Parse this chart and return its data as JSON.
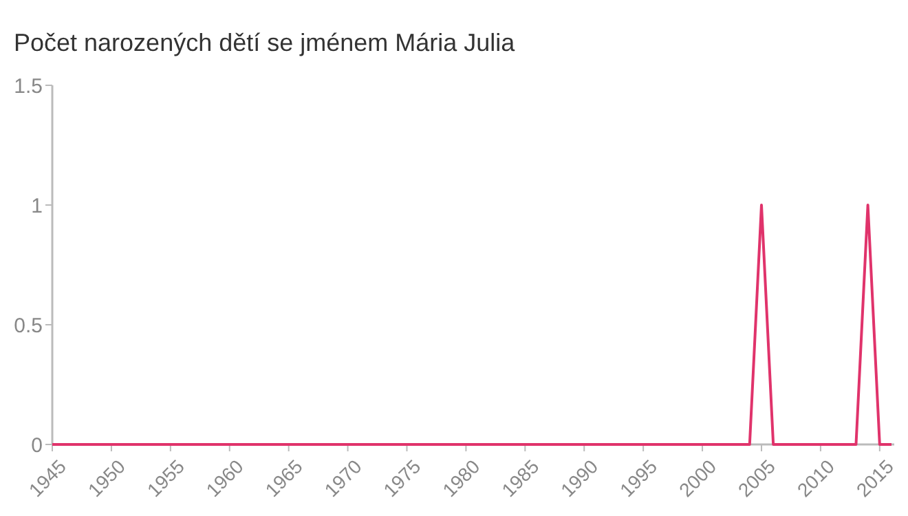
{
  "chart_data": {
    "type": "line",
    "title": "Počet narozených dětí se jménem Mária Julia",
    "x": [
      1945,
      1946,
      1947,
      1948,
      1949,
      1950,
      1951,
      1952,
      1953,
      1954,
      1955,
      1956,
      1957,
      1958,
      1959,
      1960,
      1961,
      1962,
      1963,
      1964,
      1965,
      1966,
      1967,
      1968,
      1969,
      1970,
      1971,
      1972,
      1973,
      1974,
      1975,
      1976,
      1977,
      1978,
      1979,
      1980,
      1981,
      1982,
      1983,
      1984,
      1985,
      1986,
      1987,
      1988,
      1989,
      1990,
      1991,
      1992,
      1993,
      1994,
      1995,
      1996,
      1997,
      1998,
      1999,
      2000,
      2001,
      2002,
      2003,
      2004,
      2005,
      2006,
      2007,
      2008,
      2009,
      2010,
      2011,
      2012,
      2013,
      2014,
      2015,
      2016
    ],
    "series": [
      {
        "color": "#e0336b",
        "values": [
          0,
          0,
          0,
          0,
          0,
          0,
          0,
          0,
          0,
          0,
          0,
          0,
          0,
          0,
          0,
          0,
          0,
          0,
          0,
          0,
          0,
          0,
          0,
          0,
          0,
          0,
          0,
          0,
          0,
          0,
          0,
          0,
          0,
          0,
          0,
          0,
          0,
          0,
          0,
          0,
          0,
          0,
          0,
          0,
          0,
          0,
          0,
          0,
          0,
          0,
          0,
          0,
          0,
          0,
          0,
          0,
          0,
          0,
          0,
          0,
          1,
          0,
          0,
          0,
          0,
          0,
          0,
          0,
          0,
          1,
          0,
          0
        ]
      }
    ],
    "xlim": [
      1945,
      2016
    ],
    "xticks": [
      1945,
      1950,
      1955,
      1960,
      1965,
      1970,
      1975,
      1980,
      1985,
      1990,
      1995,
      2000,
      2005,
      2010,
      2015
    ],
    "ylim": [
      0,
      1.5
    ],
    "yticks": [
      0,
      0.5,
      1,
      1.5
    ],
    "grid": false,
    "marker": "none",
    "line_style": "solid"
  }
}
